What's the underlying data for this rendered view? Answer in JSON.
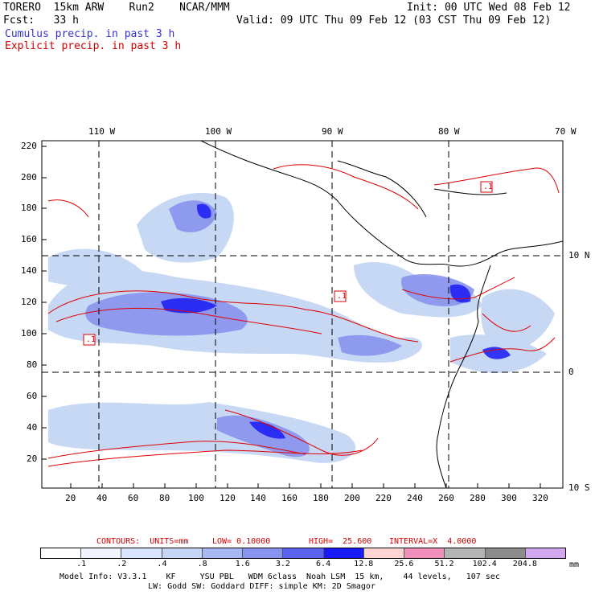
{
  "header": {
    "model": "TORERO  15km ARW    Run2    NCAR/MMM",
    "init": "Init: 00 UTC Wed 08 Feb 12",
    "fcst": "Fcst:   33 h",
    "valid": "Valid: 09 UTC Thu 09 Feb 12 (03 CST Thu 09 Feb 12)",
    "cumulus": "Cumulus precip. in past 3 h",
    "explicit": "Explicit precip. in past 3 h"
  },
  "map": {
    "lon_labels": [
      "110 W",
      "100 W",
      "90 W",
      "80 W",
      "70 W"
    ],
    "lat_labels": [
      "10 N",
      "0",
      "10 S"
    ],
    "y_ticks": [
      "220",
      "200",
      "180",
      "160",
      "140",
      "120",
      "100",
      "80",
      "60",
      "40",
      "20"
    ],
    "x_ticks": [
      "20",
      "40",
      "60",
      "80",
      "100",
      "120",
      "140",
      "160",
      "180",
      "200",
      "220",
      "240",
      "260",
      "280",
      "300",
      "320"
    ],
    "contour_labels": [
      ".1",
      ".1",
      ".1"
    ]
  },
  "contours_line": {
    "contours": "CONTOURS:  UNITS=mm",
    "low": "LOW= 0.10000",
    "high": "HIGH=  25.600",
    "interval": "INTERVAL=X  4.0000"
  },
  "colorbar": {
    "labels": [
      ".1",
      ".2",
      ".4",
      ".8",
      "1.6",
      "3.2",
      "6.4",
      "12.8",
      "25.6",
      "51.2",
      "102.4",
      "204.8"
    ],
    "unit": "mm",
    "colors": [
      "#ffffff",
      "#f0f4ff",
      "#d8e4ff",
      "#c4d6f4",
      "#a8b8f0",
      "#8894ee",
      "#5a64f0",
      "#1a1af4",
      "#ffd4d4",
      "#f090b8",
      "#b4b4b4",
      "#8c8c8c",
      "#d4a8f0"
    ]
  },
  "footer": {
    "line1": "Model Info: V3.3.1    KF     YSU PBL   WDM 6class  Noah LSM  15 km,    44 levels,   107 sec",
    "line2": "LW: Godd SW: Goddard DIFF: simple KM: 2D Smagor"
  }
}
